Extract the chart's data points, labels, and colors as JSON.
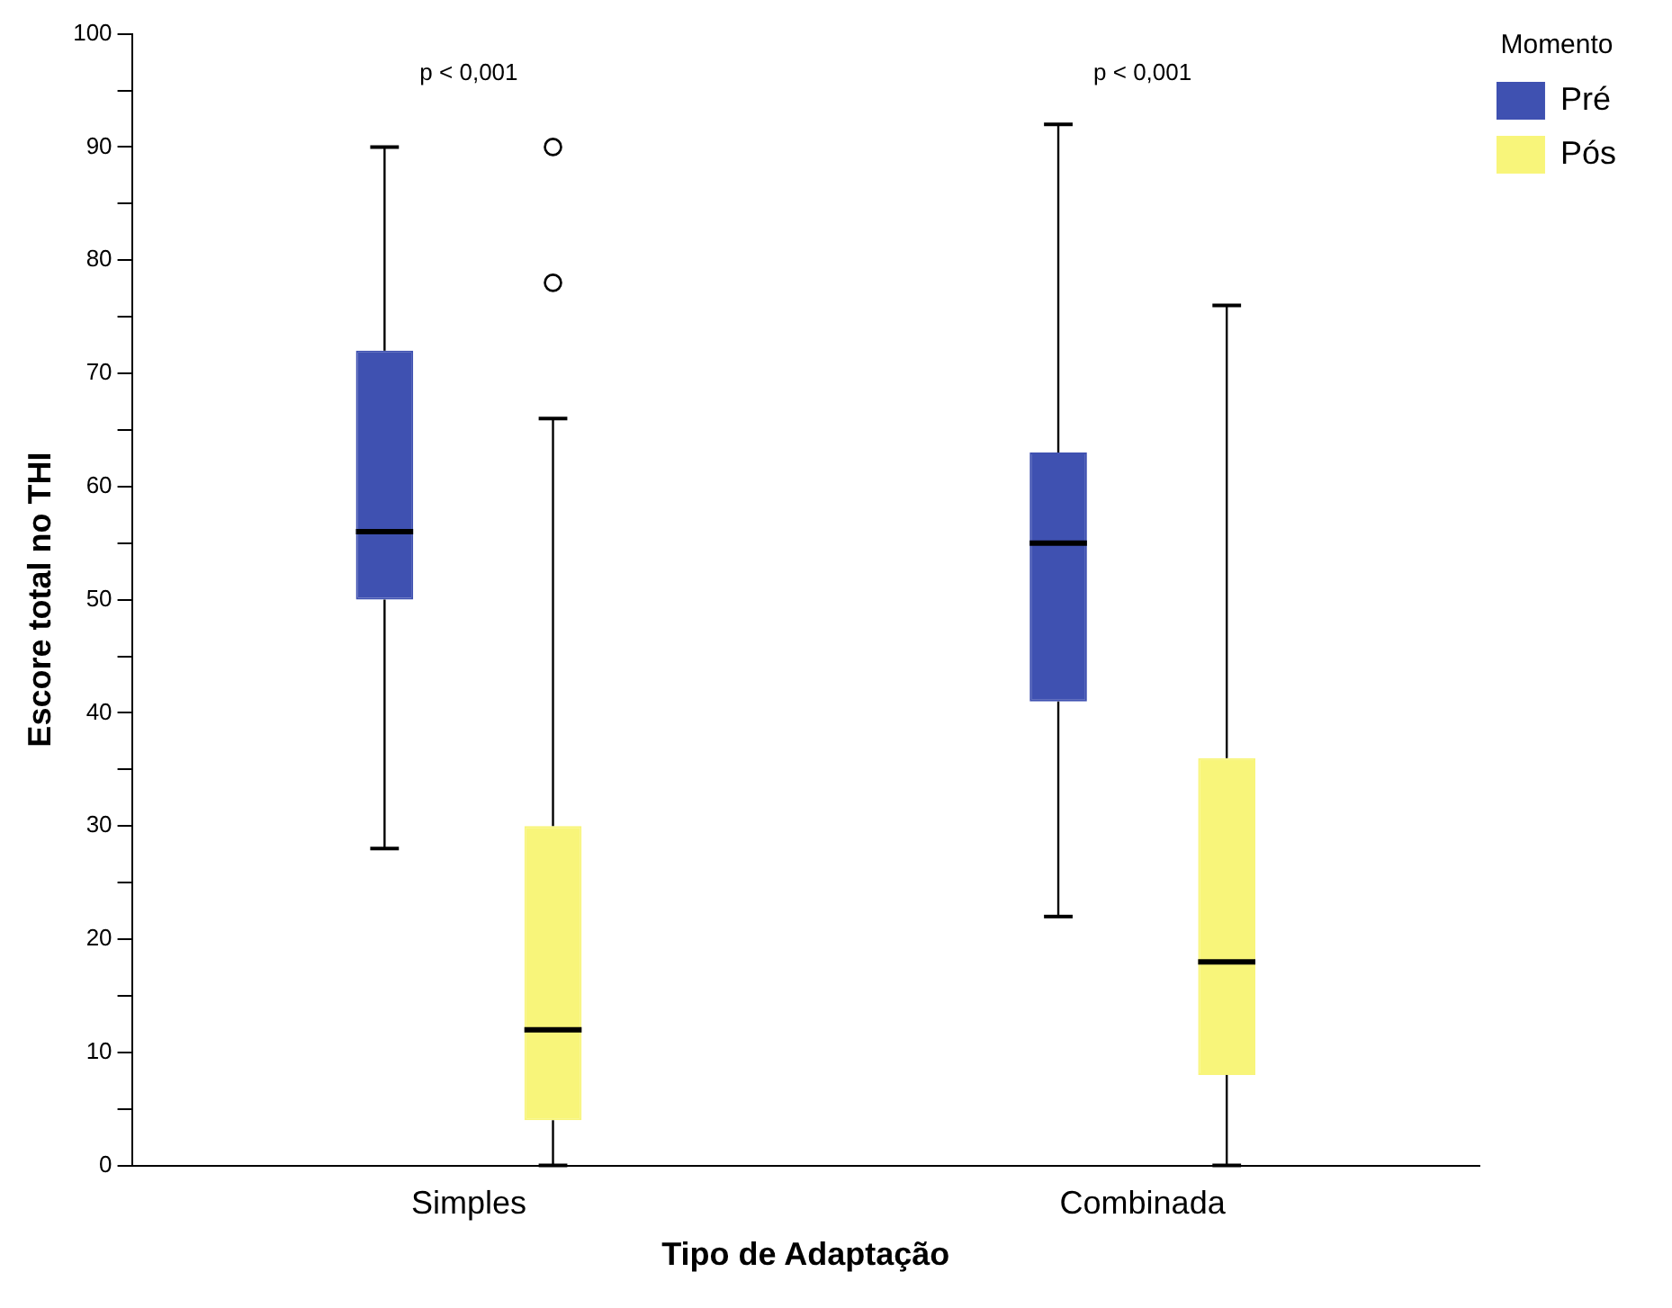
{
  "chart_data": {
    "type": "box",
    "xlabel": "Tipo de Adaptação",
    "ylabel": "Escore total no THI",
    "legend_title": "Momento",
    "legend": "top right",
    "grid": false,
    "categories": [
      "Simples",
      "Combinada"
    ],
    "ylim": [
      0,
      100
    ],
    "yticks": [
      0,
      {
        "value": 5,
        "label": null
      },
      10,
      {
        "value": 15,
        "label": null
      },
      20,
      {
        "value": 25,
        "label": null
      },
      30,
      {
        "value": 35,
        "label": null
      },
      40,
      {
        "value": 45,
        "label": null
      },
      50,
      {
        "value": 55,
        "label": null
      },
      60,
      {
        "value": 65,
        "label": null
      },
      70,
      {
        "value": 75,
        "label": null
      },
      80,
      {
        "value": 85,
        "label": null
      },
      90,
      {
        "value": 95,
        "label": null
      },
      100
    ],
    "annotations": [
      "p < 0,001",
      "p < 0,001"
    ],
    "series": [
      {
        "name": "Pré",
        "color": "#3f51b1",
        "boxes": [
          {
            "low": 28,
            "q1": 50,
            "median": 56,
            "q3": 72,
            "high": 90
          },
          {
            "low": 22,
            "q1": 41,
            "median": 55,
            "q3": 63,
            "high": 92
          }
        ]
      },
      {
        "name": "Pós",
        "color": "#f8f57a",
        "boxes": [
          {
            "low": 0,
            "q1": 4,
            "median": 12,
            "q3": 30,
            "high": 66,
            "outliers": [
              78,
              90
            ]
          },
          {
            "low": 0,
            "q1": 8,
            "median": 18,
            "q3": 36,
            "high": 76
          }
        ]
      }
    ]
  }
}
